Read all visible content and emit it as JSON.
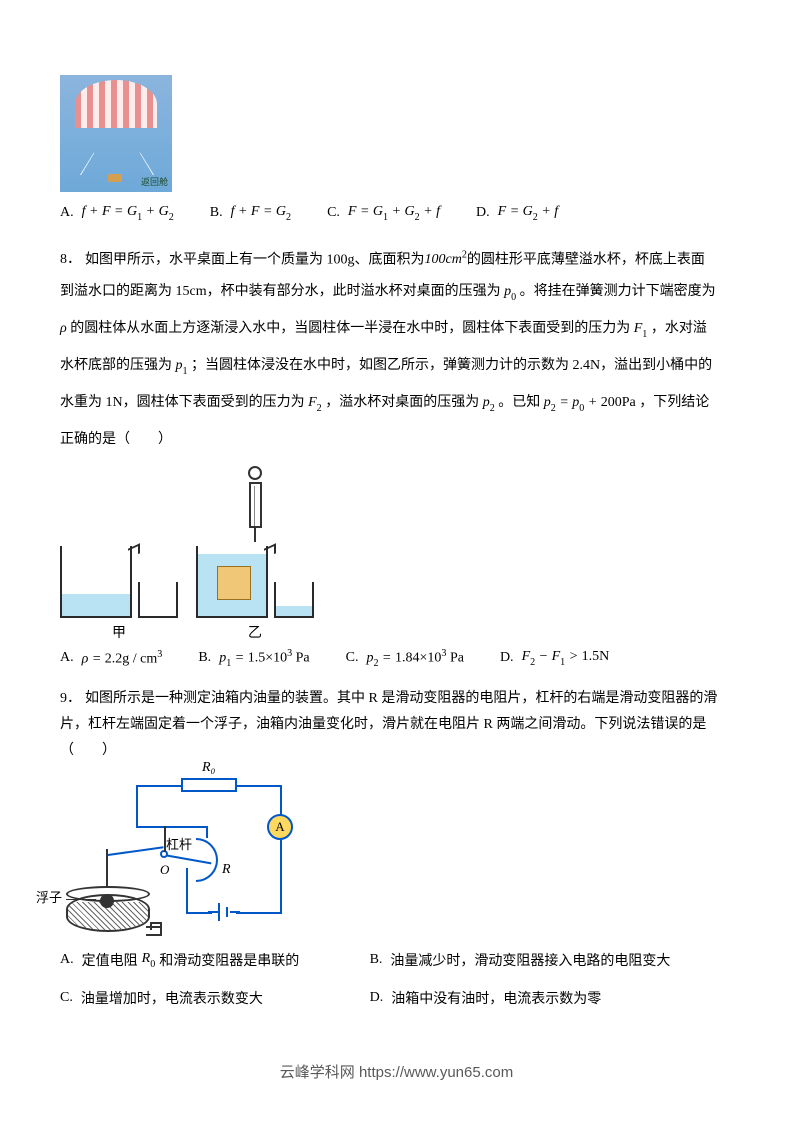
{
  "parachute_img_label": "返回舱",
  "q7": {
    "options": [
      {
        "label": "A.",
        "math": "f + F = G<sub>1</sub> + G<sub>2</sub>"
      },
      {
        "label": "B.",
        "math": "f + F = G<sub>2</sub>"
      },
      {
        "label": "C.",
        "math": "F = G<sub>1</sub> + G<sub>2</sub> + f"
      },
      {
        "label": "D.",
        "math": "F = G<sub>2</sub> + f"
      }
    ]
  },
  "q8": {
    "num": "8．",
    "line1a": "如图甲所示，水平桌面上有一个质量为 100g、底面积为",
    "line1_math": "100cm<sup>2</sup>",
    "line1b": "的圆柱形平底薄壁溢水杯，杯底上表面",
    "line2": "到溢水口的距离为 15cm，杯中装有部分水，此时溢水杯对桌面的压强为",
    "line2_math": "p<sub>0</sub>",
    "line2b": "。将挂在弹簧测力计下端密度为",
    "line3_math1": "ρ",
    "line3a": "的圆柱体从水面上方逐渐浸入水中，当圆柱体一半浸在水中时，圆柱体下表面受到的压力为",
    "line3_math2": "F<sub>1</sub>",
    "line3b": "，水对溢",
    "line4a": "水杯底部的压强为",
    "line4_math1": "p<sub>1</sub>",
    "line4b": "；当圆柱体浸没在水中时，如图乙所示，弹簧测力计的示数为 2.4N，溢出到小桶中的",
    "line5a": "水重为 1N，圆柱体下表面受到的压力为",
    "line5_math1": "F<sub>2</sub>",
    "line5b": "，溢水杯对桌面的压强为",
    "line5_math2": "p<sub>2</sub>",
    "line5c": "。已知",
    "line5_math3": "p<sub>2</sub> = p<sub>0</sub> + <span class=\"rm\">200Pa</span>",
    "line5d": "，下列结论",
    "line6": "正确的是（　　）",
    "fig_labels": {
      "jia": "甲",
      "yi": "乙"
    },
    "options": [
      {
        "label": "A.",
        "math": "ρ = <span class=\"rm\">2.2g / cm</span><sup>3</sup>"
      },
      {
        "label": "B.",
        "math": "p<sub>1</sub> = <span class=\"rm\">1.5×10</span><sup>3</sup> <span class=\"rm\">Pa</span>"
      },
      {
        "label": "C.",
        "math": "p<sub>2</sub> = <span class=\"rm\">1.84×10</span><sup>3</sup> <span class=\"rm\">Pa</span>"
      },
      {
        "label": "D.",
        "math": "F<sub>2</sub> − F<sub>1</sub> > <span class=\"rm\">1.5N</span>"
      }
    ]
  },
  "q9": {
    "num": "9．",
    "line1": "如图所示是一种测定油箱内油量的装置。其中 R 是滑动变阻器的电阻片，杠杆的右端是滑动变阻器的滑",
    "line2": "片，杠杆左端固定着一个浮子，油箱内油量变化时，滑片就在电阻片 R 两端之间滑动。下列说法错误的是",
    "line3": "（　　）",
    "fig": {
      "R0": "R₀",
      "A": "A",
      "lever": "杠杆",
      "O": "O",
      "R": "R",
      "float": "浮子"
    },
    "options": [
      {
        "label": "A.",
        "text_a": "定值电阻",
        "math": "R<sub>0</sub>",
        "text_b": "和滑动变阻器是串联的"
      },
      {
        "label": "B.",
        "text": "油量减少时，滑动变阻器接入电路的电阻变大"
      },
      {
        "label": "C.",
        "text": "油量增加时，电流表示数变大"
      },
      {
        "label": "D.",
        "text": "油箱中没有油时，电流表示数为零"
      }
    ]
  },
  "footer": "云峰学科网 https://www.yun65.com",
  "colors": {
    "wire": "#0057c8",
    "ammeter_fill": "#ffd860",
    "water": "#b9e2f2",
    "block": "#f0c776"
  }
}
